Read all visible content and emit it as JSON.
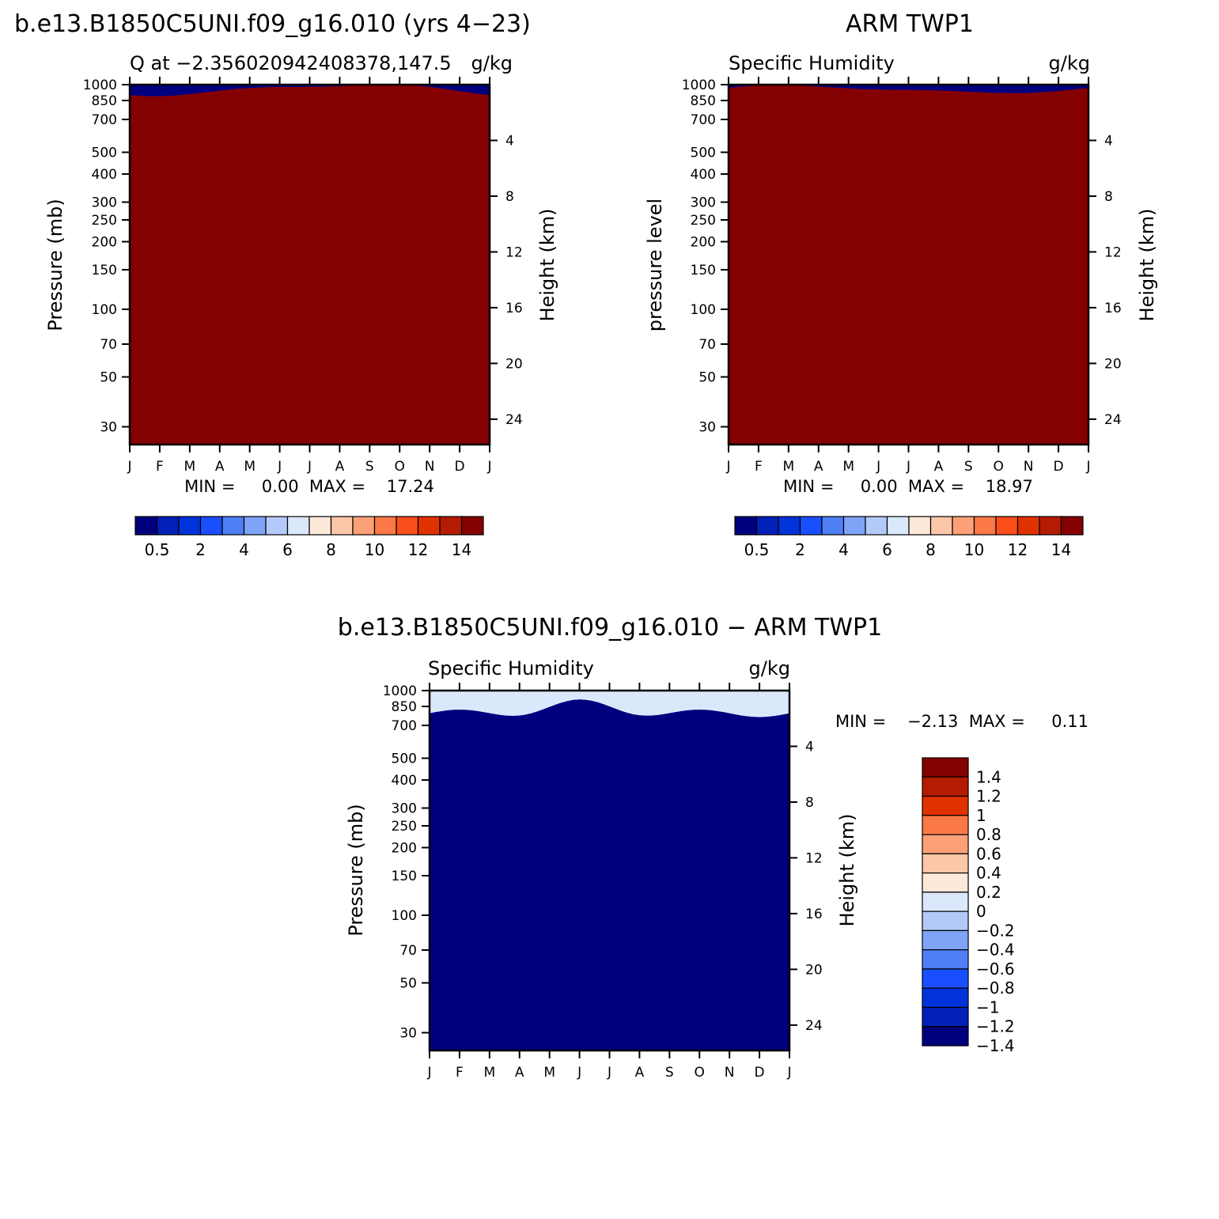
{
  "chart_data": [
    {
      "type": "heatmap",
      "id": "model",
      "title": "b.e13.B1850C5UNI.f09_g16.010 (yrs 4−23)",
      "subtitle_left": "Q at −2.356020942408378,147.5",
      "subtitle_right": "g/kg",
      "ylabel": "Pressure (mb)",
      "ylabel_right": "Height (km)",
      "x_ticks": [
        "J",
        "F",
        "M",
        "A",
        "M",
        "J",
        "J",
        "A",
        "S",
        "O",
        "N",
        "D",
        "J"
      ],
      "y_ticks": [
        "30",
        "50",
        "70",
        "100",
        "150",
        "200",
        "250",
        "300",
        "400",
        "500",
        "700",
        "850",
        "1000"
      ],
      "y_ticks_right": [
        "24",
        "20",
        "16",
        "12",
        "8",
        "4"
      ],
      "ylim": [
        1000,
        25
      ],
      "min_max_text": "MIN =     0.00  MAX =    17.24",
      "min": 0.0,
      "max": 17.24,
      "colorbar_labels": [
        "0.5",
        "2",
        "4",
        "6",
        "8",
        "10",
        "12",
        "14"
      ]
    },
    {
      "type": "heatmap",
      "id": "obs",
      "title": "ARM TWP1",
      "subtitle_left": "Specific Humidity",
      "subtitle_right": "g/kg",
      "ylabel": "pressure level",
      "ylabel_right": "Height (km)",
      "x_ticks": [
        "J",
        "F",
        "M",
        "A",
        "M",
        "J",
        "J",
        "A",
        "S",
        "O",
        "N",
        "D",
        "J"
      ],
      "y_ticks": [
        "30",
        "50",
        "70",
        "100",
        "150",
        "200",
        "250",
        "300",
        "400",
        "500",
        "700",
        "850",
        "1000"
      ],
      "y_ticks_right": [
        "24",
        "20",
        "16",
        "12",
        "8",
        "4"
      ],
      "ylim": [
        1000,
        25
      ],
      "min_max_text": "MIN =     0.00  MAX =    18.97",
      "min": 0.0,
      "max": 18.97,
      "colorbar_labels": [
        "0.5",
        "2",
        "4",
        "6",
        "8",
        "10",
        "12",
        "14"
      ]
    },
    {
      "type": "heatmap",
      "id": "diff",
      "title": "b.e13.B1850C5UNI.f09_g16.010 − ARM TWP1",
      "subtitle_left": "Specific Humidity",
      "subtitle_right": "g/kg",
      "ylabel": "Pressure (mb)",
      "ylabel_right": "Height (km)",
      "x_ticks": [
        "J",
        "F",
        "M",
        "A",
        "M",
        "J",
        "J",
        "A",
        "S",
        "O",
        "N",
        "D",
        "J"
      ],
      "y_ticks": [
        "30",
        "50",
        "70",
        "100",
        "150",
        "200",
        "250",
        "300",
        "400",
        "500",
        "700",
        "850",
        "1000"
      ],
      "y_ticks_right": [
        "24",
        "20",
        "16",
        "12",
        "8",
        "4"
      ],
      "ylim": [
        1000,
        25
      ],
      "min_max_text": "MIN =    −2.13  MAX =     0.11",
      "min": -2.13,
      "max": 0.11,
      "colorbar_labels": [
        "1.4",
        "1.2",
        "1",
        "0.8",
        "0.6",
        "0.4",
        "0.2",
        "0",
        "−0.2",
        "−0.4",
        "−0.6",
        "−0.8",
        "−1",
        "−1.2",
        "−1.4"
      ]
    }
  ],
  "colors": {
    "seq": [
      "#00007e",
      "#0020b8",
      "#0033d9",
      "#1a4fff",
      "#4f7ff5",
      "#7fa3f7",
      "#b2c9f9",
      "#dbe8fb",
      "#fde9d9",
      "#fcc6a8",
      "#fca077",
      "#fb7847",
      "#fa4e1b",
      "#e03200",
      "#b51b00",
      "#850000"
    ],
    "div": [
      "#850000",
      "#b51b00",
      "#e03200",
      "#fb7847",
      "#fca077",
      "#fcc6a8",
      "#fde9d9",
      "#dbe8fb",
      "#b2c9f9",
      "#7fa3f7",
      "#4f7ff5",
      "#1a4fff",
      "#0033d9",
      "#0020b8",
      "#00007e"
    ]
  }
}
